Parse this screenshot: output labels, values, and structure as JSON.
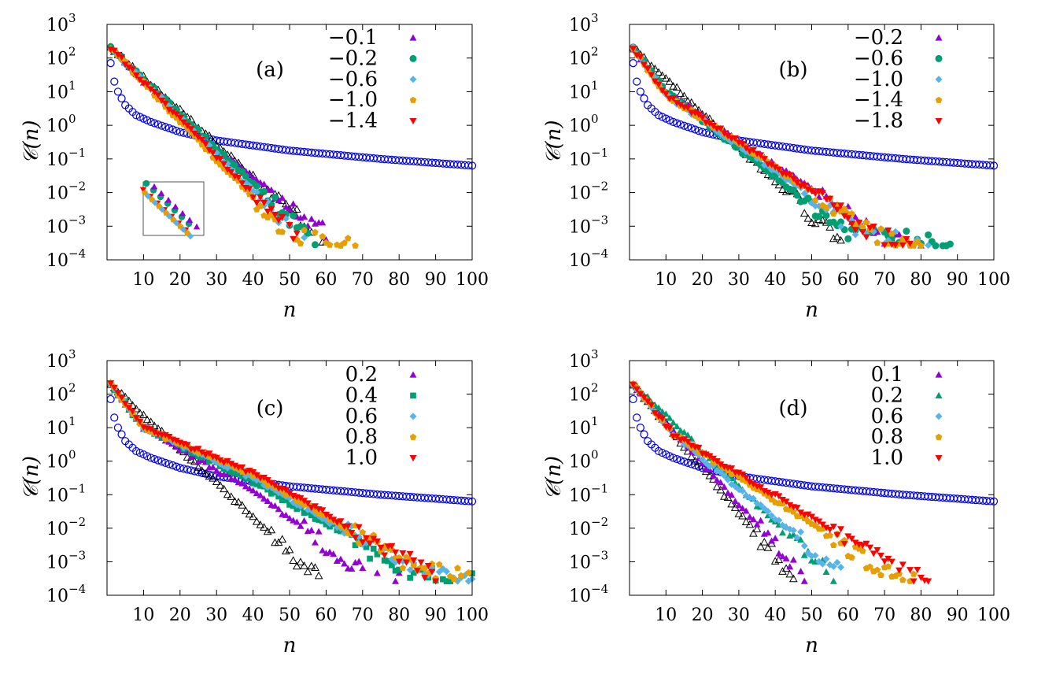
{
  "chart_data": [
    {
      "type": "scatter",
      "panel_label": "(a)",
      "xlabel": "n",
      "ylabel": "𝒞(n)",
      "xlim": [
        0,
        100
      ],
      "ylim_log10": [
        -4,
        3
      ],
      "yscale": "log",
      "x_ticks": [
        10,
        20,
        30,
        40,
        50,
        60,
        70,
        80,
        90,
        100
      ],
      "y_ticks": [
        "10^3",
        "10^2",
        "10^1",
        "10^0",
        "10^-1",
        "10^-2",
        "10^-3",
        "10^-4"
      ],
      "has_inset": true,
      "reference_series": [
        {
          "name": "open-circle",
          "marker": "circle-open",
          "color": "#0000dd",
          "x_range": [
            1,
            100
          ],
          "log10_at_x": [
            [
              1,
              1.85
            ],
            [
              2,
              1.3
            ],
            [
              3,
              1.0
            ],
            [
              5,
              0.6
            ],
            [
              8,
              0.3
            ],
            [
              12,
              0.1
            ],
            [
              20,
              -0.2
            ],
            [
              30,
              -0.45
            ],
            [
              50,
              -0.75
            ],
            [
              75,
              -1.0
            ],
            [
              100,
              -1.2
            ]
          ]
        },
        {
          "name": "open-triangle",
          "marker": "triangle-open",
          "color": "#000000",
          "x_range": [
            1,
            60
          ],
          "log10_at_x": [
            [
              1,
              2.3
            ],
            [
              60,
              -3.5
            ]
          ]
        }
      ],
      "series": [
        {
          "name": "−0.1",
          "marker": "triangle",
          "color": "#9400d3",
          "x_range": [
            1,
            64
          ],
          "log10_at_x": [
            [
              1,
              2.3
            ],
            [
              25,
              -0.3
            ],
            [
              64,
              -3.5
            ]
          ]
        },
        {
          "name": "−0.2",
          "marker": "circle",
          "color": "#009e73",
          "x_range": [
            1,
            57
          ],
          "log10_at_x": [
            [
              1,
              2.3
            ],
            [
              57,
              -3.5
            ]
          ]
        },
        {
          "name": "−0.6",
          "marker": "diamond",
          "color": "#56b4e9",
          "x_range": [
            1,
            54
          ],
          "log10_at_x": [
            [
              1,
              2.3
            ],
            [
              54,
              -3.5
            ]
          ]
        },
        {
          "name": "−1.0",
          "marker": "pentagon",
          "color": "#e69f00",
          "x_range": [
            1,
            68
          ],
          "log10_at_x": [
            [
              1,
              2.3
            ],
            [
              50,
              -3.3
            ],
            [
              68,
              -3.5
            ]
          ]
        },
        {
          "name": "−1.4",
          "marker": "triangle-down",
          "color": "#ff0000",
          "x_range": [
            1,
            53
          ],
          "log10_at_x": [
            [
              1,
              2.3
            ],
            [
              53,
              -3.5
            ]
          ]
        }
      ]
    },
    {
      "type": "scatter",
      "panel_label": "(b)",
      "xlabel": "n",
      "ylabel": "𝒞(n)",
      "xlim": [
        0,
        100
      ],
      "ylim_log10": [
        -4,
        3
      ],
      "yscale": "log",
      "x_ticks": [
        10,
        20,
        30,
        40,
        50,
        60,
        70,
        80,
        90,
        100
      ],
      "y_ticks": [
        "10^3",
        "10^2",
        "10^1",
        "10^0",
        "10^-1",
        "10^-2",
        "10^-3",
        "10^-4"
      ],
      "has_inset": false,
      "reference_series": [
        {
          "name": "open-circle",
          "marker": "circle-open",
          "color": "#0000dd",
          "x_range": [
            1,
            100
          ],
          "log10_at_x": [
            [
              1,
              1.85
            ],
            [
              2,
              1.3
            ],
            [
              3,
              1.0
            ],
            [
              5,
              0.6
            ],
            [
              8,
              0.3
            ],
            [
              12,
              0.1
            ],
            [
              20,
              -0.2
            ],
            [
              30,
              -0.45
            ],
            [
              50,
              -0.75
            ],
            [
              75,
              -1.0
            ],
            [
              100,
              -1.2
            ]
          ]
        },
        {
          "name": "open-triangle",
          "marker": "triangle-open",
          "color": "#000000",
          "x_range": [
            1,
            58
          ],
          "log10_at_x": [
            [
              1,
              2.3
            ],
            [
              58,
              -3.5
            ]
          ]
        }
      ],
      "series": [
        {
          "name": "−0.2",
          "marker": "triangle",
          "color": "#9400d3",
          "x_range": [
            1,
            80
          ],
          "log10_at_x": [
            [
              1,
              2.3
            ],
            [
              10,
              1.0
            ],
            [
              30,
              -0.5
            ],
            [
              70,
              -3.3
            ],
            [
              80,
              -3.5
            ]
          ]
        },
        {
          "name": "−0.6",
          "marker": "circle",
          "color": "#009e73",
          "x_range": [
            1,
            88
          ],
          "log10_at_x": [
            [
              1,
              2.3
            ],
            [
              10,
              1.0
            ],
            [
              30,
              -0.7
            ],
            [
              60,
              -3.2
            ],
            [
              88,
              -3.5
            ]
          ]
        },
        {
          "name": "−1.0",
          "marker": "diamond",
          "color": "#56b4e9",
          "x_range": [
            1,
            82
          ],
          "log10_at_x": [
            [
              1,
              2.3
            ],
            [
              10,
              0.9
            ],
            [
              30,
              -0.6
            ],
            [
              65,
              -3.3
            ],
            [
              82,
              -3.5
            ]
          ]
        },
        {
          "name": "−1.4",
          "marker": "pentagon",
          "color": "#e69f00",
          "x_range": [
            1,
            80
          ],
          "log10_at_x": [
            [
              1,
              2.3
            ],
            [
              10,
              0.9
            ],
            [
              30,
              -0.5
            ],
            [
              68,
              -3.3
            ],
            [
              80,
              -3.5
            ]
          ]
        },
        {
          "name": "−1.8",
          "marker": "triangle-down",
          "color": "#ff0000",
          "x_range": [
            1,
            78
          ],
          "log10_at_x": [
            [
              1,
              2.3
            ],
            [
              10,
              0.9
            ],
            [
              30,
              -0.5
            ],
            [
              68,
              -3.3
            ],
            [
              78,
              -3.5
            ]
          ]
        }
      ]
    },
    {
      "type": "scatter",
      "panel_label": "(c)",
      "xlabel": "n",
      "ylabel": "𝒞(n)",
      "xlim": [
        0,
        100
      ],
      "ylim_log10": [
        -4,
        3
      ],
      "yscale": "log",
      "x_ticks": [
        10,
        20,
        30,
        40,
        50,
        60,
        70,
        80,
        90,
        100
      ],
      "y_ticks": [
        "10^3",
        "10^2",
        "10^1",
        "10^0",
        "10^-1",
        "10^-2",
        "10^-3",
        "10^-4"
      ],
      "has_inset": false,
      "reference_series": [
        {
          "name": "open-circle",
          "marker": "circle-open",
          "color": "#0000dd",
          "x_range": [
            1,
            100
          ],
          "log10_at_x": [
            [
              1,
              1.85
            ],
            [
              2,
              1.3
            ],
            [
              3,
              1.0
            ],
            [
              5,
              0.6
            ],
            [
              8,
              0.3
            ],
            [
              12,
              0.1
            ],
            [
              20,
              -0.2
            ],
            [
              30,
              -0.45
            ],
            [
              50,
              -0.75
            ],
            [
              75,
              -1.0
            ],
            [
              100,
              -1.2
            ]
          ]
        },
        {
          "name": "open-triangle",
          "marker": "triangle-open",
          "color": "#000000",
          "x_range": [
            1,
            58
          ],
          "log10_at_x": [
            [
              1,
              2.3
            ],
            [
              58,
              -3.5
            ]
          ]
        }
      ],
      "series": [
        {
          "name": "0.2",
          "marker": "triangle",
          "color": "#9400d3",
          "x_range": [
            1,
            80
          ],
          "log10_at_x": [
            [
              1,
              2.3
            ],
            [
              10,
              1.0
            ],
            [
              40,
              -0.9
            ],
            [
              70,
              -3.3
            ],
            [
              80,
              -3.5
            ]
          ]
        },
        {
          "name": "0.4",
          "marker": "square",
          "color": "#009e73",
          "x_range": [
            1,
            100
          ],
          "log10_at_x": [
            [
              1,
              2.3
            ],
            [
              10,
              1.0
            ],
            [
              40,
              -0.6
            ],
            [
              80,
              -3.2
            ],
            [
              100,
              -3.5
            ]
          ]
        },
        {
          "name": "0.6",
          "marker": "diamond",
          "color": "#56b4e9",
          "x_range": [
            1,
            100
          ],
          "log10_at_x": [
            [
              1,
              2.3
            ],
            [
              10,
              1.0
            ],
            [
              40,
              -0.5
            ],
            [
              85,
              -3.3
            ],
            [
              100,
              -3.5
            ]
          ]
        },
        {
          "name": "0.8",
          "marker": "pentagon",
          "color": "#e69f00",
          "x_range": [
            1,
            99
          ],
          "log10_at_x": [
            [
              1,
              2.3
            ],
            [
              10,
              1.0
            ],
            [
              40,
              -0.4
            ],
            [
              85,
              -3.2
            ],
            [
              99,
              -3.5
            ]
          ]
        },
        {
          "name": "1.0",
          "marker": "triangle-down",
          "color": "#ff0000",
          "x_range": [
            1,
            90
          ],
          "log10_at_x": [
            [
              1,
              2.3
            ],
            [
              10,
              1.0
            ],
            [
              40,
              -0.35
            ],
            [
              88,
              -3.3
            ],
            [
              90,
              -3.5
            ]
          ]
        }
      ]
    },
    {
      "type": "scatter",
      "panel_label": "(d)",
      "xlabel": "n",
      "ylabel": "𝒞(n)",
      "xlim": [
        0,
        100
      ],
      "ylim_log10": [
        -4,
        3
      ],
      "yscale": "log",
      "x_ticks": [
        10,
        20,
        30,
        40,
        50,
        60,
        70,
        80,
        90,
        100
      ],
      "y_ticks": [
        "10^3",
        "10^2",
        "10^1",
        "10^0",
        "10^-1",
        "10^-2",
        "10^-3",
        "10^-4"
      ],
      "has_inset": false,
      "reference_series": [
        {
          "name": "open-circle",
          "marker": "circle-open",
          "color": "#0000dd",
          "x_range": [
            1,
            100
          ],
          "log10_at_x": [
            [
              1,
              1.85
            ],
            [
              2,
              1.3
            ],
            [
              3,
              1.0
            ],
            [
              5,
              0.6
            ],
            [
              8,
              0.3
            ],
            [
              12,
              0.1
            ],
            [
              20,
              -0.2
            ],
            [
              30,
              -0.45
            ],
            [
              50,
              -0.75
            ],
            [
              75,
              -1.0
            ],
            [
              100,
              -1.2
            ]
          ]
        },
        {
          "name": "open-triangle",
          "marker": "triangle-open",
          "color": "#000000",
          "x_range": [
            1,
            45
          ],
          "log10_at_x": [
            [
              1,
              2.3
            ],
            [
              45,
              -3.5
            ]
          ]
        }
      ],
      "series": [
        {
          "name": "0.1",
          "marker": "triangle",
          "color": "#9400d3",
          "x_range": [
            1,
            48
          ],
          "log10_at_x": [
            [
              1,
              2.3
            ],
            [
              48,
              -3.5
            ]
          ]
        },
        {
          "name": "0.2",
          "marker": "triangle",
          "color": "#009e73",
          "x_range": [
            1,
            56
          ],
          "log10_at_x": [
            [
              1,
              2.3
            ],
            [
              56,
              -3.5
            ]
          ]
        },
        {
          "name": "0.6",
          "marker": "diamond",
          "color": "#56b4e9",
          "x_range": [
            1,
            60
          ],
          "log10_at_x": [
            [
              1,
              2.3
            ],
            [
              12,
              0.8
            ],
            [
              60,
              -3.5
            ]
          ]
        },
        {
          "name": "0.8",
          "marker": "pentagon",
          "color": "#e69f00",
          "x_range": [
            1,
            78
          ],
          "log10_at_x": [
            [
              1,
              2.3
            ],
            [
              12,
              0.8
            ],
            [
              70,
              -3.3
            ],
            [
              78,
              -3.5
            ]
          ]
        },
        {
          "name": "1.0",
          "marker": "triangle-down",
          "color": "#ff0000",
          "x_range": [
            1,
            84
          ],
          "log10_at_x": [
            [
              1,
              2.3
            ],
            [
              12,
              0.8
            ],
            [
              75,
              -3.3
            ],
            [
              84,
              -3.5
            ]
          ]
        }
      ]
    }
  ]
}
